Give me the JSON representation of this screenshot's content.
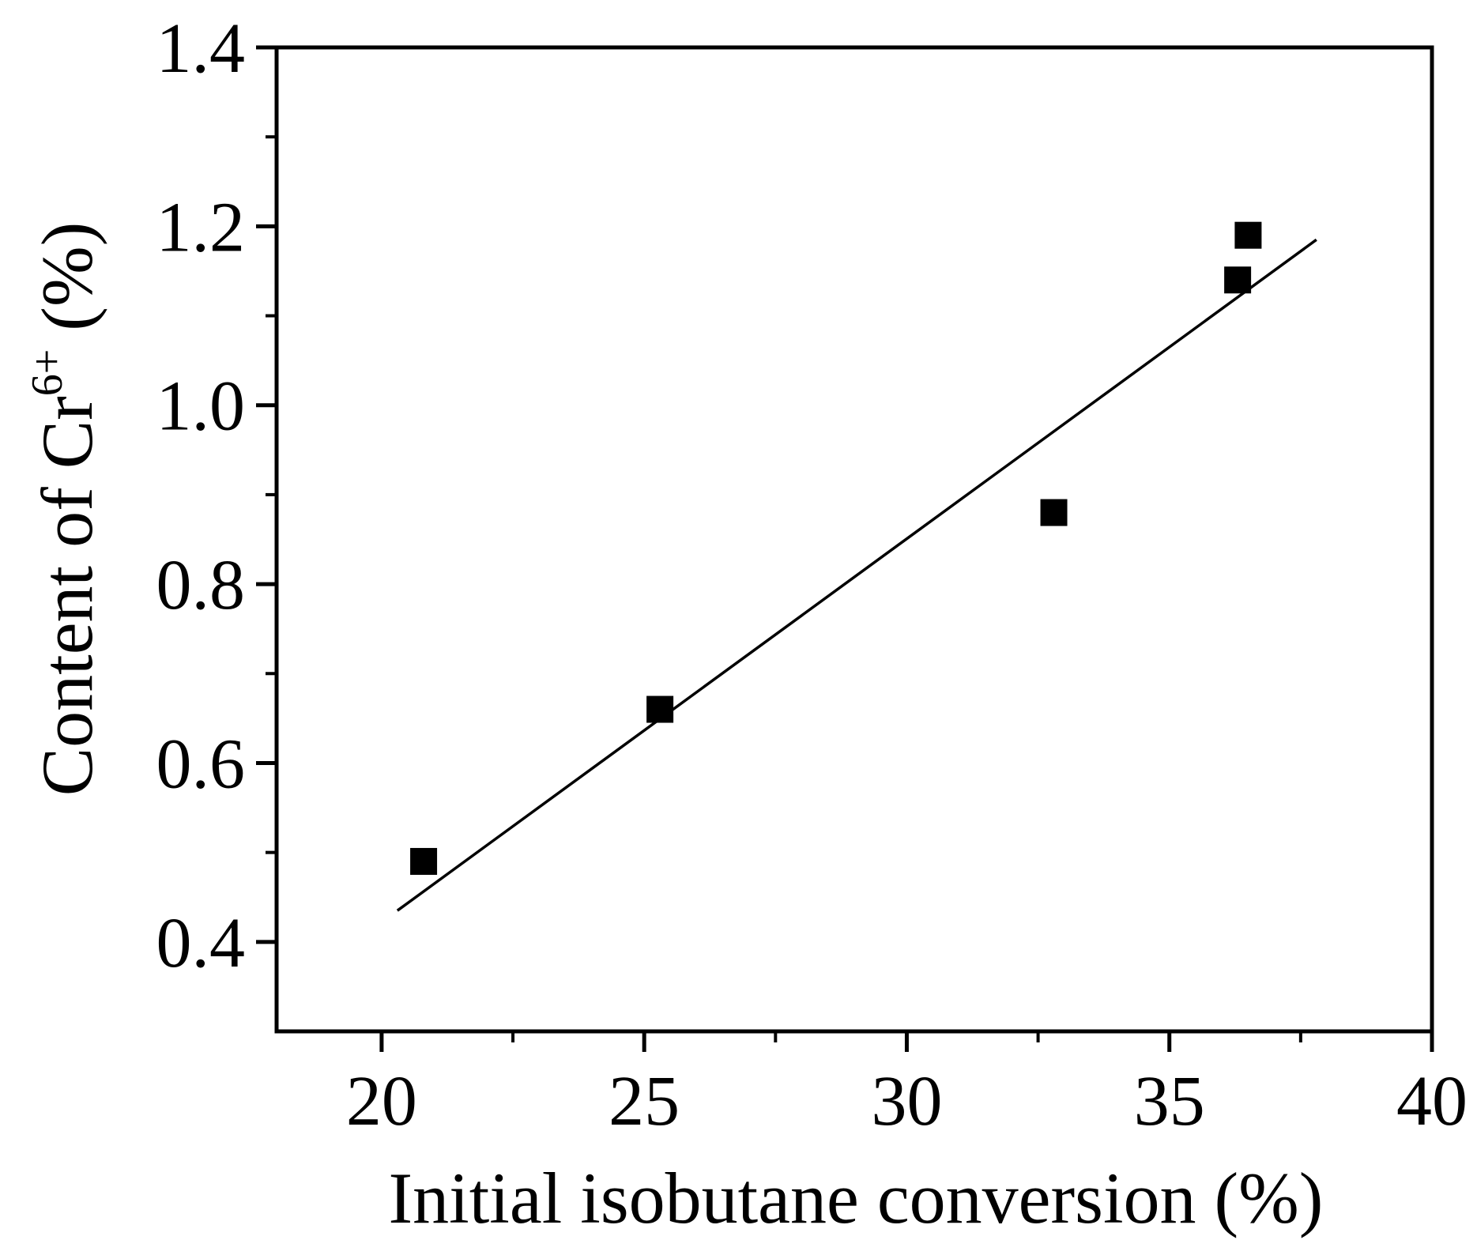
{
  "chart_data": {
    "type": "scatter",
    "title": "",
    "xlabel": "Initial isobutane conversion (%)",
    "ylabel": {
      "prefix": "Content of Cr",
      "superscript": "6+",
      "suffix": " (%)"
    },
    "xlim": [
      18,
      40
    ],
    "ylim": [
      0.3,
      1.4
    ],
    "x_ticks_major": [
      20,
      25,
      30,
      35,
      40
    ],
    "x_tick_labels": [
      "20",
      "25",
      "30",
      "35",
      "40"
    ],
    "x_ticks_minor": [
      22.5,
      27.5,
      32.5,
      37.5
    ],
    "y_ticks_major": [
      0.4,
      0.6,
      0.8,
      1.0,
      1.2,
      1.4
    ],
    "y_tick_labels": [
      "0.4",
      "0.6",
      "0.8",
      "1.0",
      "1.2",
      "1.4"
    ],
    "y_ticks_minor": [
      0.5,
      0.7,
      0.9,
      1.1,
      1.3
    ],
    "grid": false,
    "series": [
      {
        "name": "data",
        "marker": "square",
        "color": "#000000",
        "points": [
          {
            "x": 20.8,
            "y": 0.49
          },
          {
            "x": 25.3,
            "y": 0.66
          },
          {
            "x": 32.8,
            "y": 0.88
          },
          {
            "x": 36.3,
            "y": 1.14
          },
          {
            "x": 36.5,
            "y": 1.19
          }
        ]
      }
    ],
    "fit_line": {
      "name": "linear-fit",
      "color": "#000000",
      "start": {
        "x": 20.3,
        "y": 0.435
      },
      "end": {
        "x": 37.8,
        "y": 1.185
      }
    }
  }
}
